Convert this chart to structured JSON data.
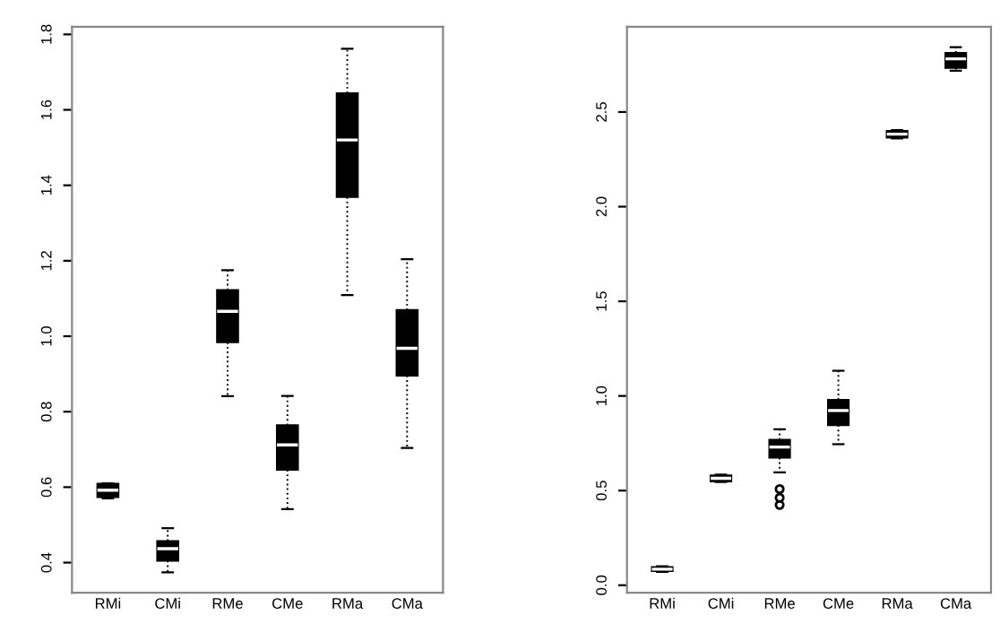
{
  "chart_data": [
    {
      "type": "box",
      "categories": [
        "RMi",
        "CMi",
        "RMe",
        "CMe",
        "RMa",
        "CMa"
      ],
      "ylim": [
        0.32,
        1.82
      ],
      "yticks": [
        {
          "value": 0.4,
          "label": "0.4"
        },
        {
          "value": 0.6,
          "label": "0.6"
        },
        {
          "value": 0.8,
          "label": "0.8"
        },
        {
          "value": 1.0,
          "label": "1.0"
        },
        {
          "value": 1.2,
          "label": "1.2"
        },
        {
          "value": 1.4,
          "label": "1.4"
        },
        {
          "value": 1.6,
          "label": "1.6"
        },
        {
          "value": 1.8,
          "label": "1.8"
        }
      ],
      "grid": false,
      "line_style": "dotted",
      "series": [
        {
          "color": "#000000",
          "boxes": [
            {
              "low": 0.57,
              "q1": 0.574,
              "median": 0.592,
              "q3": 0.609,
              "high": 0.61
            },
            {
              "low": 0.374,
              "q1": 0.405,
              "median": 0.437,
              "q3": 0.457,
              "high": 0.491
            },
            {
              "low": 0.841,
              "q1": 0.984,
              "median": 1.066,
              "q3": 1.122,
              "high": 1.175
            },
            {
              "low": 0.542,
              "q1": 0.646,
              "median": 0.712,
              "q3": 0.764,
              "high": 0.842
            },
            {
              "low": 1.109,
              "q1": 1.369,
              "median": 1.52,
              "q3": 1.644,
              "high": 1.762
            },
            {
              "low": 0.704,
              "q1": 0.896,
              "median": 0.968,
              "q3": 1.069,
              "high": 1.204
            }
          ]
        }
      ]
    },
    {
      "type": "box",
      "categories": [
        "RMi",
        "CMi",
        "RMe",
        "CMe",
        "RMa",
        "CMa"
      ],
      "ylim": [
        -0.04,
        2.95
      ],
      "yticks": [
        {
          "value": 0,
          "label": "0.0"
        },
        {
          "value": 0.5,
          "label": "0.5"
        },
        {
          "value": 1,
          "label": "1.0"
        },
        {
          "value": 1.5,
          "label": "1.5"
        },
        {
          "value": 2,
          "label": "2.0"
        },
        {
          "value": 2.5,
          "label": "2.5"
        }
      ],
      "grid": false,
      "line_style": "dotted",
      "series": [
        {
          "color": "#000000",
          "boxes": [
            {
              "low": 0.07,
              "q1": 0.075,
              "median": 0.085,
              "q3": 0.095,
              "high": 0.1
            },
            {
              "low": 0.545,
              "q1": 0.549,
              "median": 0.565,
              "q3": 0.58,
              "high": 0.585
            },
            {
              "low": 0.596,
              "q1": 0.674,
              "median": 0.73,
              "q3": 0.768,
              "high": 0.824,
              "outliers": [
                0.508,
                0.462,
                0.424
              ]
            },
            {
              "low": 0.745,
              "q1": 0.846,
              "median": 0.923,
              "q3": 0.979,
              "high": 1.133
            },
            {
              "low": 2.36,
              "q1": 2.365,
              "median": 2.383,
              "q3": 2.4,
              "high": 2.405
            },
            {
              "low": 2.718,
              "q1": 2.734,
              "median": 2.781,
              "q3": 2.812,
              "high": 2.843
            }
          ]
        }
      ]
    }
  ]
}
